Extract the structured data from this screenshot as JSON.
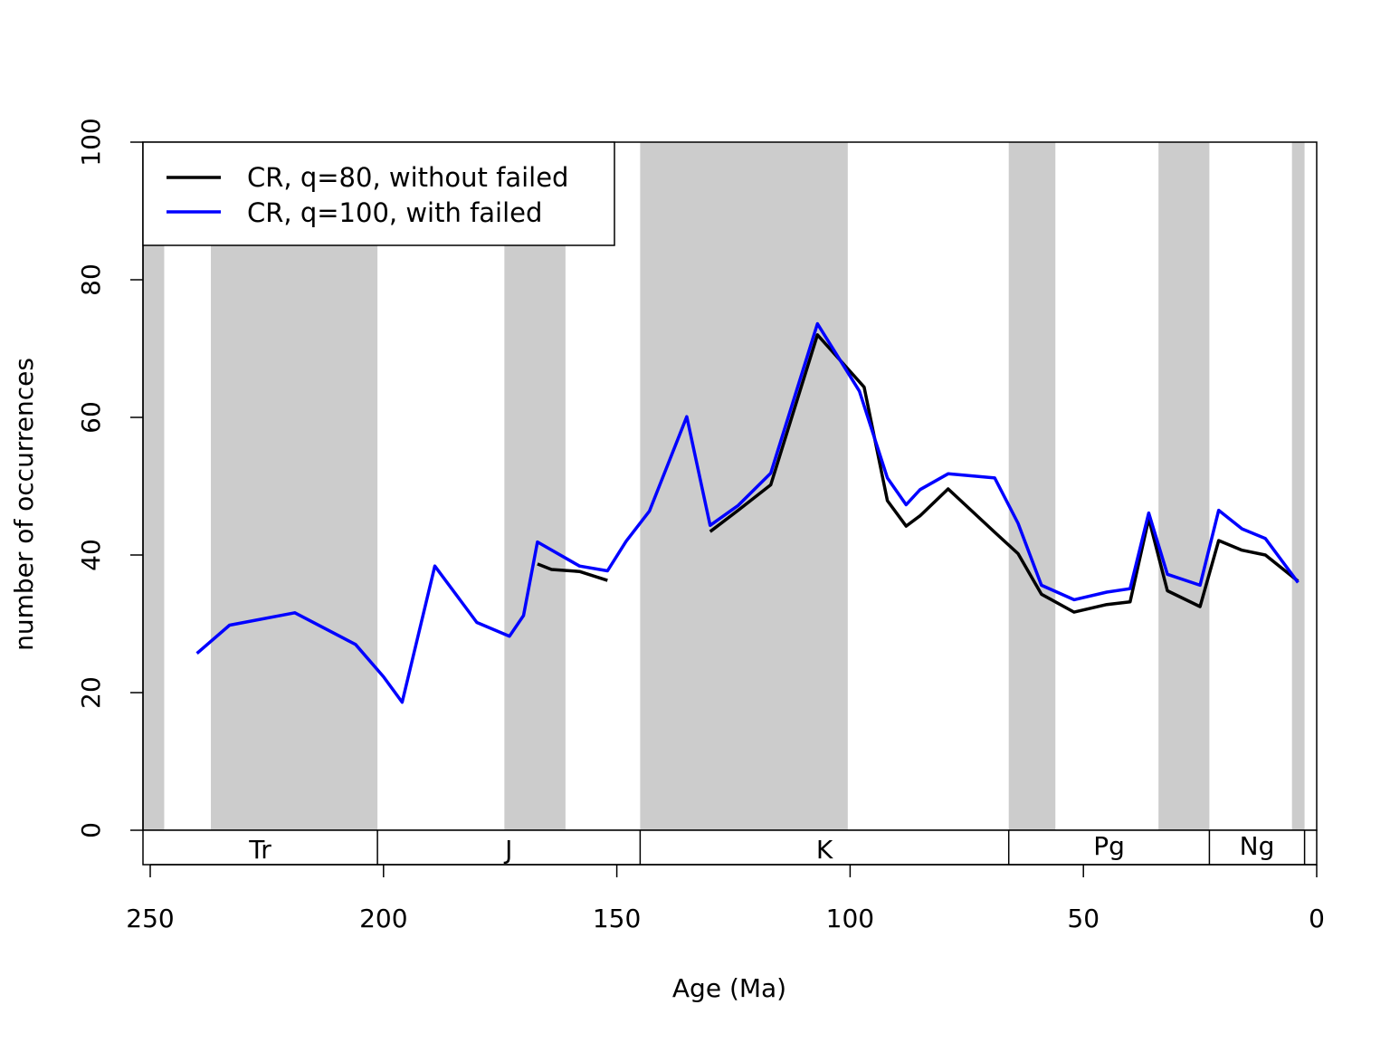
{
  "chart_data": {
    "type": "line",
    "title": "",
    "xlabel": "Age (Ma)",
    "ylabel": "number of occurrences",
    "xlim": [
      252,
      0
    ],
    "ylim": [
      0,
      100
    ],
    "x_reversed": true,
    "xticks": [
      250,
      200,
      150,
      100,
      50,
      0
    ],
    "yticks": [
      0,
      20,
      40,
      60,
      80,
      100
    ],
    "legend_position": "top-left",
    "shaded_intervals": [
      [
        252,
        247
      ],
      [
        237,
        201.3
      ],
      [
        174.1,
        161
      ],
      [
        145,
        100.5
      ],
      [
        66,
        56
      ],
      [
        33.9,
        23
      ],
      [
        5.3,
        2.6
      ]
    ],
    "periods": [
      {
        "label": "Tr",
        "start": 252,
        "end": 201.3
      },
      {
        "label": "J",
        "start": 201.3,
        "end": 145
      },
      {
        "label": "K",
        "start": 145,
        "end": 66
      },
      {
        "label": "Pg",
        "start": 66,
        "end": 23
      },
      {
        "label": "Ng",
        "start": 23,
        "end": 2.6
      },
      {
        "label": "",
        "start": 2.6,
        "end": 0
      }
    ],
    "series": [
      {
        "name": "CR, q=80, without failed",
        "color": "#000000",
        "segments": [
          {
            "x": [
              167,
              164,
              158,
              152
            ],
            "y": [
              38.7,
              37.9,
              37.6,
              36.3
            ]
          },
          {
            "x": [
              130,
              124,
              117,
              107,
              97,
              92,
              88,
              85,
              79,
              69,
              64,
              59,
              52,
              45,
              40,
              36,
              32,
              25,
              21,
              16,
              11,
              4
            ],
            "y": [
              43.4,
              46.5,
              50.2,
              72.0,
              64.4,
              47.9,
              44.2,
              45.7,
              49.6,
              43.3,
              40.2,
              34.3,
              31.7,
              32.8,
              33.2,
              45.3,
              34.8,
              32.5,
              42.1,
              40.7,
              40.0,
              36.2
            ]
          }
        ]
      },
      {
        "name": "CR, q=100, with failed",
        "color": "#0000ff",
        "segments": [
          {
            "x": [
              240,
              233,
              219,
              206,
              200,
              196,
              189,
              180,
              173,
              170,
              167,
              158,
              152,
              148,
              143,
              135,
              130,
              124,
              117,
              107,
              98,
              92,
              88,
              85,
              79,
              69,
              64,
              59,
              52,
              45,
              40,
              36,
              32,
              25,
              21,
              16,
              11,
              4
            ],
            "y": [
              25.7,
              29.8,
              31.6,
              27.0,
              22.3,
              18.6,
              38.4,
              30.2,
              28.2,
              31.2,
              41.9,
              38.4,
              37.7,
              42.0,
              46.4,
              60.1,
              44.3,
              47.2,
              51.9,
              73.6,
              63.8,
              51.2,
              47.3,
              49.5,
              51.8,
              51.2,
              44.6,
              35.6,
              33.5,
              34.6,
              35.1,
              46.1,
              37.2,
              35.6,
              46.5,
              43.8,
              42.4,
              36.0
            ]
          }
        ]
      }
    ]
  }
}
